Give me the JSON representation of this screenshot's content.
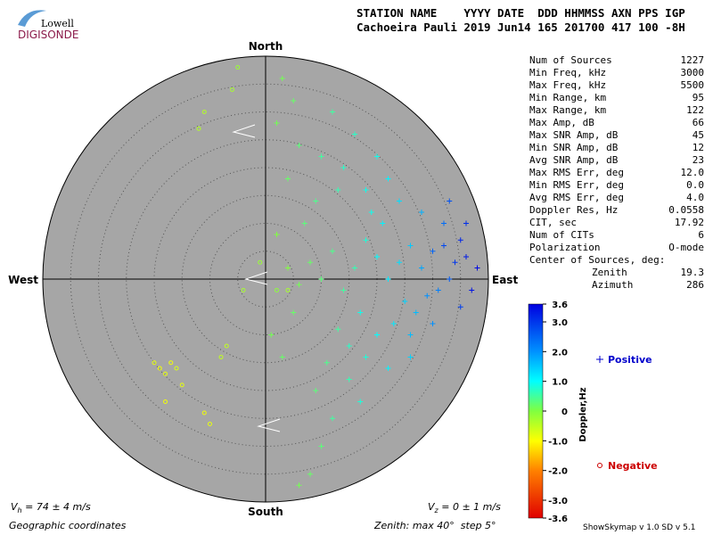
{
  "header": {
    "logo_top": "Lowell",
    "logo_bottom": "DIGISONDE",
    "line1": "STATION NAME    YYYY DATE  DDD HHMMSS AXN PPS IGP",
    "line2": "Cachoeira Pauli 2019 Jun14 165 201700 417 100 -8H"
  },
  "compass": {
    "north": "North",
    "south": "South",
    "east": "East",
    "west": "West"
  },
  "stats": [
    [
      "Num of Sources",
      "1227"
    ],
    [
      "Min Freq, kHz",
      "3000"
    ],
    [
      "Max Freq, kHz",
      "5500"
    ],
    [
      "Min Range, km",
      "95"
    ],
    [
      "Max Range, km",
      "122"
    ],
    [
      "Max Amp, dB",
      "66"
    ],
    [
      "Max SNR Amp, dB",
      "45"
    ],
    [
      "Min SNR Amp, dB",
      "12"
    ],
    [
      "Avg SNR Amp, dB",
      "23"
    ],
    [
      "Max RMS Err, deg",
      "12.0"
    ],
    [
      "Min RMS Err, deg",
      "0.0"
    ],
    [
      "Avg RMS Err, deg",
      "4.0"
    ],
    [
      "Doppler Res, Hz",
      "0.0558"
    ],
    [
      "CIT, sec",
      "17.92"
    ],
    [
      "Num of CITs",
      "6"
    ],
    [
      "Polarization",
      "O-mode"
    ]
  ],
  "center": {
    "title": "Center of Sources, deg:",
    "zenith_label": "Zenith",
    "zenith_value": "19.3",
    "azimuth_label": "Azimuth",
    "azimuth_value": "286"
  },
  "colorbar": {
    "title": "Doppler,Hz",
    "range": [
      -3.6,
      3.6
    ],
    "ticks": [
      3.6,
      {
        "value": 3,
        "label": "3.0"
      },
      {
        "value": 2,
        "label": "2.0"
      },
      {
        "value": 1,
        "label": "1.0"
      },
      0,
      {
        "value": -1,
        "label": "-1.0"
      },
      {
        "value": -2,
        "label": "-2.0"
      },
      {
        "value": -3,
        "label": "-3.0"
      },
      -3.6
    ]
  },
  "legend": {
    "positive": "Positive",
    "negative": "Negative"
  },
  "footer": {
    "vh_symbol": "V",
    "vh_sub": "h",
    "vh_text": " = 74 ± 4 m/s",
    "vz_symbol": "V",
    "vz_sub": "z",
    "vz_text": " = 0 ± 1 m/s",
    "coords": "Geographic coordinates",
    "zenith": "Zenith: max 40°  step 5°",
    "version": "ShowSkymap v 1.0  SD v 5.1"
  },
  "grid": {
    "max": 40,
    "step": 5
  },
  "sources": {
    "positive": [
      [
        30,
        5,
        2.5
      ],
      [
        32,
        6,
        2.8
      ],
      [
        34,
        3,
        3.0
      ],
      [
        35,
        7,
        3.2
      ],
      [
        36,
        4,
        3.3
      ],
      [
        33,
        0,
        2.6
      ],
      [
        31,
        -2,
        2.2
      ],
      [
        28,
        2,
        1.8
      ],
      [
        26,
        6,
        1.5
      ],
      [
        24,
        3,
        1.3
      ],
      [
        22,
        0,
        1.2
      ],
      [
        20,
        4,
        1.0
      ],
      [
        18,
        7,
        0.8
      ],
      [
        16,
        2,
        0.6
      ],
      [
        14,
        -2,
        0.5
      ],
      [
        12,
        5,
        0.4
      ],
      [
        10,
        0,
        0.3
      ],
      [
        8,
        3,
        0.2
      ],
      [
        6,
        -1,
        0.1
      ],
      [
        4,
        2,
        0.0
      ],
      [
        25,
        -4,
        1.4
      ],
      [
        27,
        -6,
        1.6
      ],
      [
        29,
        -3,
        2.0
      ],
      [
        23,
        -8,
        1.2
      ],
      [
        20,
        -10,
        1.0
      ],
      [
        17,
        -6,
        0.9
      ],
      [
        15,
        -12,
        0.7
      ],
      [
        13,
        -9,
        0.5
      ],
      [
        11,
        -15,
        0.4
      ],
      [
        9,
        -20,
        0.3
      ],
      [
        12,
        -25,
        0.5
      ],
      [
        10,
        -30,
        0.3
      ],
      [
        8,
        -35,
        0.2
      ],
      [
        6,
        -37,
        0.1
      ],
      [
        15,
        -18,
        0.6
      ],
      [
        18,
        -14,
        0.8
      ],
      [
        24,
        14,
        1.3
      ],
      [
        22,
        18,
        1.1
      ],
      [
        18,
        16,
        0.9
      ],
      [
        14,
        20,
        0.7
      ],
      [
        10,
        22,
        0.5
      ],
      [
        6,
        24,
        0.3
      ],
      [
        4,
        18,
        0.2
      ],
      [
        2,
        28,
        0.1
      ],
      [
        5,
        32,
        0.2
      ],
      [
        3,
        36,
        0.1
      ],
      [
        20,
        22,
        0.9
      ],
      [
        16,
        26,
        0.7
      ],
      [
        12,
        30,
        0.5
      ],
      [
        28,
        12,
        1.7
      ],
      [
        32,
        10,
        2.4
      ],
      [
        35,
        -5,
        2.9
      ],
      [
        37,
        -2,
        3.4
      ],
      [
        38,
        2,
        3.5
      ],
      [
        36,
        10,
        3.1
      ],
      [
        33,
        14,
        2.7
      ],
      [
        30,
        -8,
        2.0
      ],
      [
        26,
        -10,
        1.6
      ],
      [
        21,
        10,
        1.1
      ],
      [
        19,
        12,
        0.9
      ],
      [
        7,
        10,
        0.3
      ],
      [
        9,
        14,
        0.4
      ],
      [
        2,
        8,
        0.0
      ],
      [
        1,
        -10,
        0.1
      ],
      [
        3,
        -14,
        0.2
      ],
      [
        5,
        -6,
        0.2
      ],
      [
        22,
        -16,
        1.1
      ],
      [
        26,
        -14,
        1.4
      ],
      [
        17,
        -22,
        0.8
      ],
      [
        13,
        16,
        0.6
      ]
    ],
    "negative": [
      [
        -20,
        -15,
        -0.8
      ],
      [
        -19,
        -16,
        -0.9
      ],
      [
        -18,
        -17,
        -0.8
      ],
      [
        -17,
        -15,
        -0.9
      ],
      [
        -16,
        -16,
        -0.7
      ],
      [
        -15,
        -19,
        -0.8
      ],
      [
        -18,
        -22,
        -0.9
      ],
      [
        -11,
        -24,
        -0.9
      ],
      [
        -7,
        -12,
        -0.5
      ],
      [
        -10,
        -26,
        -0.8
      ],
      [
        -4,
        -2,
        -0.3
      ],
      [
        -5,
        38,
        -0.2
      ],
      [
        -6,
        34,
        -0.3
      ],
      [
        -11,
        30,
        -0.4
      ],
      [
        -12,
        27,
        -0.4
      ],
      [
        -8,
        -14,
        -0.5
      ],
      [
        -1,
        3,
        -0.2
      ],
      [
        2,
        -2,
        -0.1
      ],
      [
        4,
        -2,
        -0.3
      ]
    ]
  }
}
